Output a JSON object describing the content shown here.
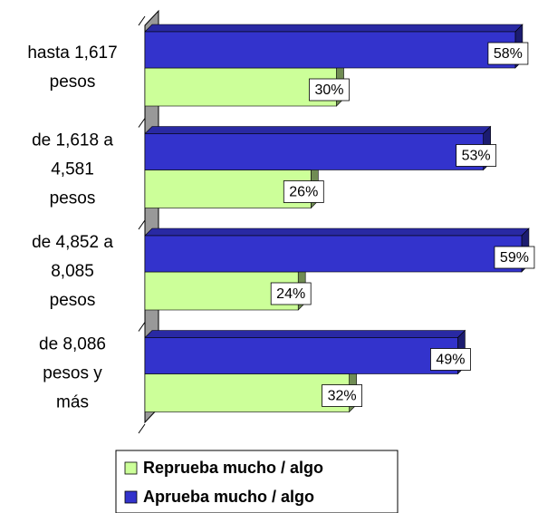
{
  "chart_data": {
    "type": "bar3d",
    "categories": [
      [
        "hasta 1,617",
        "pesos"
      ],
      [
        "de 1,618 a",
        "4,581",
        "pesos"
      ],
      [
        "de 4,852 a",
        "8,085",
        "pesos"
      ],
      [
        "de 8,086",
        "pesos y",
        "más"
      ]
    ],
    "series": [
      {
        "name": "Reprueba mucho / algo",
        "color": "#ccff99",
        "values": [
          30,
          26,
          24,
          32
        ],
        "value_labels": [
          "30%",
          "26%",
          "24%",
          "32%"
        ]
      },
      {
        "name": "Aprueba mucho / algo",
        "color": "#3333cc",
        "values": [
          58,
          53,
          59,
          49
        ],
        "value_labels": [
          "58%",
          "53%",
          "59%",
          "49%"
        ]
      }
    ]
  }
}
